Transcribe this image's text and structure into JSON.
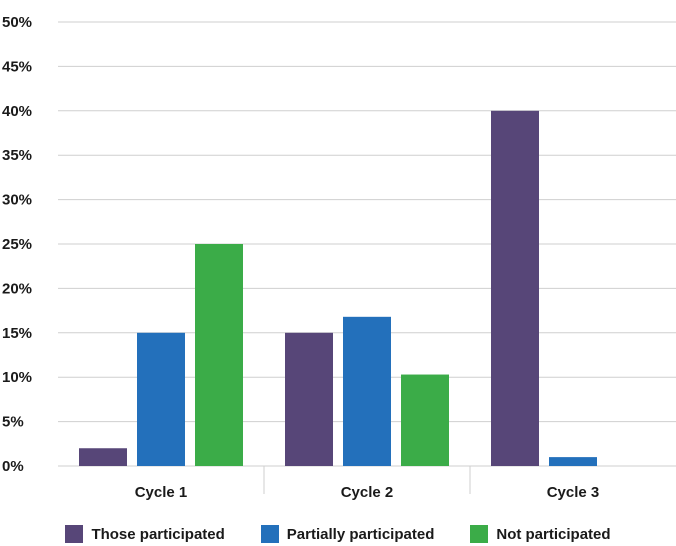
{
  "chart_data": {
    "type": "bar",
    "categories": [
      "Cycle 1",
      "Cycle 2",
      "Cycle 3"
    ],
    "series": [
      {
        "name": "Those participated",
        "values": [
          2,
          15,
          40
        ],
        "color": "#574678"
      },
      {
        "name": "Partially participated",
        "values": [
          15,
          16.8,
          1
        ],
        "color": "#2370bb"
      },
      {
        "name": "Not participated",
        "values": [
          25,
          10.3,
          0
        ],
        "color": "#3bac48"
      }
    ],
    "y_ticks": [
      "0%",
      "5%",
      "10%",
      "15%",
      "20%",
      "25%",
      "30%",
      "35%",
      "40%",
      "45%",
      "50%"
    ],
    "ylim": [
      0,
      50
    ],
    "grid": true,
    "legend_position": "bottom",
    "gridline_color": "#cfcfcf"
  }
}
